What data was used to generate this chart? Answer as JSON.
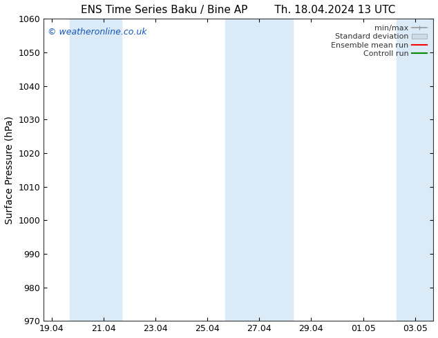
{
  "title_left": "ENS Time Series Baku / Bine AP",
  "title_right": "Th. 18.04.2024 13 UTC",
  "ylabel": "Surface Pressure (hPa)",
  "xlabel_ticks": [
    "19.04",
    "21.04",
    "23.04",
    "25.04",
    "27.04",
    "29.04",
    "01.05",
    "03.05"
  ],
  "x_tick_positions": [
    0,
    2,
    4,
    6,
    8,
    10,
    12,
    14
  ],
  "ylim": [
    970,
    1060
  ],
  "yticks": [
    970,
    980,
    990,
    1000,
    1010,
    1020,
    1030,
    1040,
    1050,
    1060
  ],
  "xlim": [
    -0.3,
    14.7
  ],
  "background_color": "#ffffff",
  "plot_bg_color": "#ffffff",
  "shaded_bands": [
    {
      "x_start": 0.7,
      "x_end": 2.7,
      "color": "#daeaf7"
    },
    {
      "x_start": 6.7,
      "x_end": 9.3,
      "color": "#daeaf7"
    },
    {
      "x_start": 13.3,
      "x_end": 14.7,
      "color": "#daeaf7"
    }
  ],
  "watermark_text": "© weatheronline.co.uk",
  "watermark_color": "#1155bb",
  "legend_items": [
    {
      "label": "min/max",
      "color": "#999999",
      "lw": 1.2,
      "style": "minmax"
    },
    {
      "label": "Standard deviation",
      "color": "#ccdde8",
      "lw": 8,
      "style": "band"
    },
    {
      "label": "Ensemble mean run",
      "color": "#ff0000",
      "lw": 1.5,
      "style": "line"
    },
    {
      "label": "Controll run",
      "color": "#008800",
      "lw": 1.5,
      "style": "line"
    }
  ],
  "title_fontsize": 11,
  "axis_label_fontsize": 10,
  "tick_fontsize": 9,
  "watermark_fontsize": 9,
  "legend_fontsize": 8
}
